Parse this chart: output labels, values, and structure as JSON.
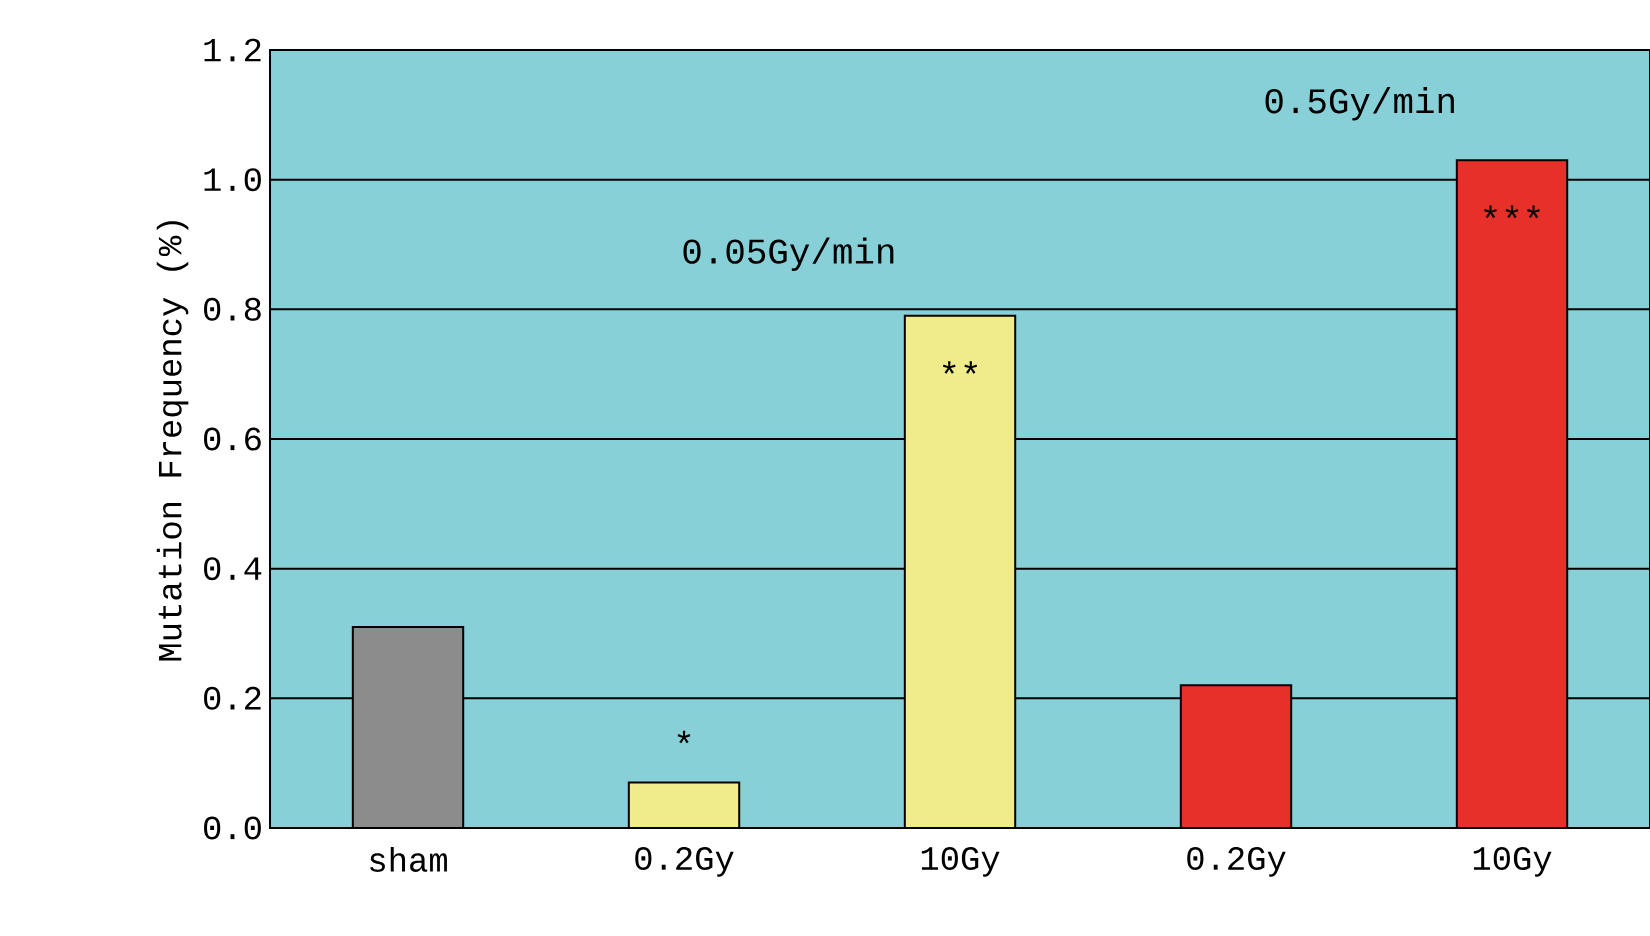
{
  "chart_data": {
    "type": "bar",
    "ylabel": "Mutation Frequency (%)",
    "categories": [
      "sham",
      "0.2Gy",
      "10Gy",
      "0.2Gy",
      "10Gy"
    ],
    "values": [
      0.31,
      0.07,
      0.79,
      0.22,
      1.03
    ],
    "colors": [
      "#8c8c8c",
      "#f0ec8c",
      "#f0ec8c",
      "#e8302a",
      "#e8302a"
    ],
    "ylim": [
      0,
      1.2
    ],
    "yticks": [
      {
        "value": 0,
        "label": "0.0"
      },
      0.2,
      0.4,
      0.6,
      0.8,
      {
        "value": 1,
        "label": "1.0"
      },
      1.2
    ],
    "grid": "y",
    "annotations": [
      "0.05Gy/min",
      "0.5Gy/min",
      "*",
      "**",
      "***"
    ]
  }
}
